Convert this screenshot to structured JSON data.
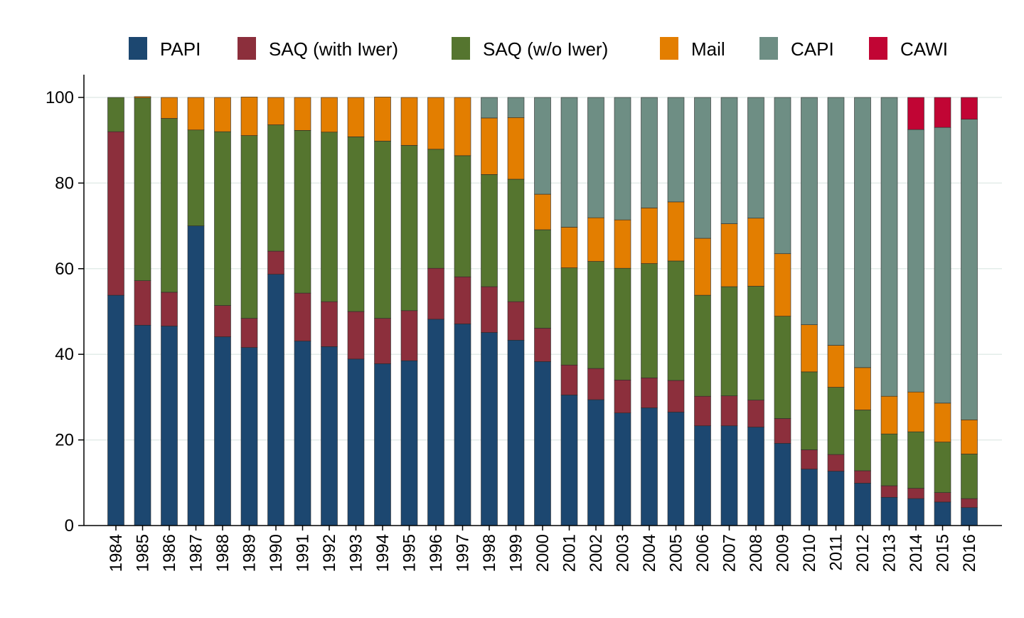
{
  "chart_data": {
    "type": "bar",
    "stacked": true,
    "title": "",
    "xlabel": "",
    "ylabel": "",
    "ylim": [
      0,
      100
    ],
    "yticks": [
      0,
      20,
      40,
      60,
      80,
      100
    ],
    "grid": true,
    "legend_position": "top",
    "categories": [
      "1984",
      "1985",
      "1986",
      "1987",
      "1988",
      "1989",
      "1990",
      "1991",
      "1992",
      "1993",
      "1994",
      "1995",
      "1996",
      "1997",
      "1998",
      "1999",
      "2000",
      "2001",
      "2002",
      "2003",
      "2004",
      "2005",
      "2006",
      "2007",
      "2008",
      "2009",
      "2010",
      "2011",
      "2012",
      "2013",
      "2014",
      "2015",
      "2016"
    ],
    "series": [
      {
        "name": "PAPI",
        "color": "#1c4770",
        "values": [
          53.8,
          46.8,
          46.6,
          70.0,
          44.1,
          41.6,
          58.7,
          43.1,
          41.8,
          38.9,
          37.8,
          38.5,
          48.2,
          47.1,
          45.1,
          43.3,
          38.3,
          30.5,
          29.4,
          26.3,
          27.5,
          26.5,
          23.3,
          23.3,
          23.0,
          19.2,
          13.2,
          12.7,
          9.9,
          6.6,
          6.3,
          5.5,
          4.2
        ]
      },
      {
        "name": "SAQ (with Iwer)",
        "color": "#8c2f3c",
        "values": [
          38.2,
          10.4,
          7.9,
          0.0,
          7.3,
          6.8,
          5.4,
          11.2,
          10.5,
          11.1,
          10.6,
          11.7,
          11.9,
          11.0,
          10.7,
          9.0,
          7.8,
          7.0,
          7.3,
          7.7,
          7.0,
          7.4,
          6.9,
          7.0,
          6.3,
          5.8,
          4.5,
          3.9,
          2.9,
          2.7,
          2.4,
          2.2,
          2.1
        ]
      },
      {
        "name": "SAQ (w/o Iwer)",
        "color": "#55752f",
        "values": [
          8.0,
          42.7,
          40.6,
          22.4,
          40.6,
          42.7,
          29.5,
          38.0,
          39.6,
          40.8,
          41.4,
          38.6,
          27.8,
          28.3,
          26.2,
          28.6,
          23.0,
          22.7,
          25.0,
          26.1,
          26.7,
          27.9,
          23.6,
          25.5,
          26.6,
          23.9,
          18.2,
          15.7,
          14.2,
          12.1,
          13.2,
          11.8,
          10.4
        ]
      },
      {
        "name": "Mail",
        "color": "#e37e00",
        "values": [
          0.0,
          0.3,
          4.9,
          7.6,
          8.0,
          9.0,
          6.4,
          7.7,
          8.1,
          9.2,
          10.3,
          11.2,
          12.1,
          13.6,
          13.2,
          14.4,
          8.3,
          9.5,
          10.2,
          11.3,
          13.0,
          13.8,
          13.3,
          14.7,
          15.9,
          14.6,
          11.0,
          9.8,
          9.9,
          8.8,
          9.3,
          9.1,
          8.0
        ]
      },
      {
        "name": "CAPI",
        "color": "#6e8e84",
        "values": [
          0.0,
          0.0,
          0.0,
          0.0,
          0.0,
          0.0,
          0.0,
          0.0,
          0.0,
          0.0,
          0.0,
          0.0,
          0.0,
          0.0,
          4.8,
          4.7,
          22.6,
          30.3,
          28.1,
          28.6,
          25.8,
          24.4,
          32.9,
          29.5,
          28.2,
          36.5,
          53.1,
          57.9,
          63.1,
          69.8,
          61.3,
          64.4,
          70.2
        ]
      },
      {
        "name": "CAWI",
        "color": "#c10534",
        "values": [
          0.0,
          0.0,
          0.0,
          0.0,
          0.0,
          0.0,
          0.0,
          0.0,
          0.0,
          0.0,
          0.0,
          0.0,
          0.0,
          0.0,
          0.0,
          0.0,
          0.0,
          0.0,
          0.0,
          0.0,
          0.0,
          0.0,
          0.0,
          0.0,
          0.0,
          0.0,
          0.0,
          0.0,
          0.0,
          0.0,
          7.5,
          7.0,
          5.1
        ]
      }
    ]
  }
}
